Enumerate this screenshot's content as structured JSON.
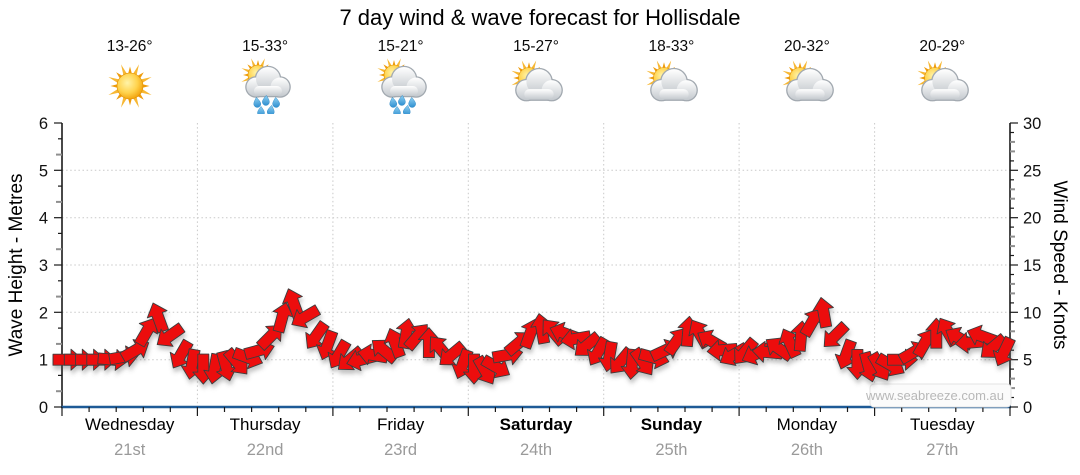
{
  "watermark": "www.seabreeze.com.au",
  "colors": {
    "arrow_red": "#EC1111",
    "x_axis_blue": "#1e5a96",
    "grid_gray": "#c9c9c9",
    "date_gray": "#9a9a9a",
    "watermark_gray": "#b8b8b8"
  },
  "chart_data": {
    "type": "wind-arrow-band",
    "title": "7 day wind & wave forecast for Hollisdale",
    "ylabel_left": "Wave Height - Metres",
    "ylabel_right": "Wind Speed - Knots",
    "ylim_metres": [
      0,
      6
    ],
    "ylim_knots": [
      0,
      30
    ],
    "yticks_metres": [
      0,
      1,
      2,
      3,
      4,
      5,
      6
    ],
    "yticks_knots": [
      0,
      5,
      10,
      15,
      20,
      25,
      30
    ],
    "grid": true,
    "days": [
      {
        "name": "Wednesday",
        "date": "21st",
        "temp": "13-26°",
        "icon": "sunny",
        "weekend": false
      },
      {
        "name": "Thursday",
        "date": "22nd",
        "temp": "15-33°",
        "icon": "sun-rain",
        "weekend": false
      },
      {
        "name": "Friday",
        "date": "23rd",
        "temp": "15-21°",
        "icon": "sun-rain",
        "weekend": false
      },
      {
        "name": "Saturday",
        "date": "24th",
        "temp": "15-27°",
        "icon": "sun-cloud",
        "weekend": true
      },
      {
        "name": "Sunday",
        "date": "25th",
        "temp": "18-33°",
        "icon": "sun-cloud",
        "weekend": true
      },
      {
        "name": "Monday",
        "date": "26th",
        "temp": "20-32°",
        "icon": "sun-cloud",
        "weekend": false
      },
      {
        "name": "Tuesday",
        "date": "27th",
        "temp": "20-29°",
        "icon": "sun-cloud",
        "weekend": false
      }
    ],
    "wind_series_knots_dir": [
      [
        5,
        0
      ],
      [
        5,
        0
      ],
      [
        5,
        0
      ],
      [
        5,
        0
      ],
      [
        5,
        5
      ],
      [
        5.3,
        -10
      ],
      [
        6,
        -30
      ],
      [
        8,
        -60
      ],
      [
        9.5,
        -110
      ],
      [
        7.5,
        145
      ],
      [
        5.5,
        120
      ],
      [
        4.5,
        100
      ],
      [
        4,
        90
      ],
      [
        4,
        100
      ],
      [
        4.3,
        75
      ],
      [
        4.7,
        50
      ],
      [
        5.2,
        20
      ],
      [
        6,
        -15
      ],
      [
        7.5,
        -45
      ],
      [
        9.5,
        -75
      ],
      [
        11,
        -110
      ],
      [
        9.5,
        150
      ],
      [
        7.5,
        125
      ],
      [
        6.5,
        110
      ],
      [
        5.5,
        120
      ],
      [
        5,
        140
      ],
      [
        5,
        165
      ],
      [
        5.5,
        -170
      ],
      [
        6,
        -140
      ],
      [
        6.8,
        -110
      ],
      [
        7.8,
        -80
      ],
      [
        7.5,
        -50
      ],
      [
        6.8,
        -90
      ],
      [
        6.2,
        -130
      ],
      [
        5.5,
        140
      ],
      [
        4.5,
        110
      ],
      [
        4,
        90
      ],
      [
        3.8,
        60
      ],
      [
        4.2,
        30
      ],
      [
        5.5,
        -10
      ],
      [
        6.8,
        -40
      ],
      [
        7.8,
        -70
      ],
      [
        8.3,
        -100
      ],
      [
        8,
        -130
      ],
      [
        7.8,
        -160
      ],
      [
        7.2,
        170
      ],
      [
        6.5,
        140
      ],
      [
        5.8,
        120
      ],
      [
        5.3,
        100
      ],
      [
        4.8,
        130
      ],
      [
        4.5,
        95
      ],
      [
        4.7,
        55
      ],
      [
        5.2,
        15
      ],
      [
        6,
        -25
      ],
      [
        7,
        -55
      ],
      [
        8,
        -85
      ],
      [
        7.8,
        -120
      ],
      [
        7,
        -150
      ],
      [
        6,
        175
      ],
      [
        5.5,
        150
      ],
      [
        5.8,
        130
      ],
      [
        5.6,
        155
      ],
      [
        5.8,
        -175
      ],
      [
        6.2,
        -145
      ],
      [
        6.8,
        -115
      ],
      [
        7.5,
        -85
      ],
      [
        9,
        -60
      ],
      [
        10,
        -100
      ],
      [
        7.5,
        135
      ],
      [
        5.5,
        110
      ],
      [
        4.5,
        90
      ],
      [
        4.2,
        75
      ],
      [
        4.2,
        60
      ],
      [
        4.4,
        30
      ],
      [
        5,
        0
      ],
      [
        5.8,
        -30
      ],
      [
        6.8,
        -60
      ],
      [
        7.8,
        -90
      ],
      [
        8,
        -120
      ],
      [
        7.3,
        -150
      ],
      [
        6.8,
        175
      ],
      [
        7.5,
        -160
      ],
      [
        6.3,
        140
      ],
      [
        5.8,
        115
      ]
    ]
  }
}
